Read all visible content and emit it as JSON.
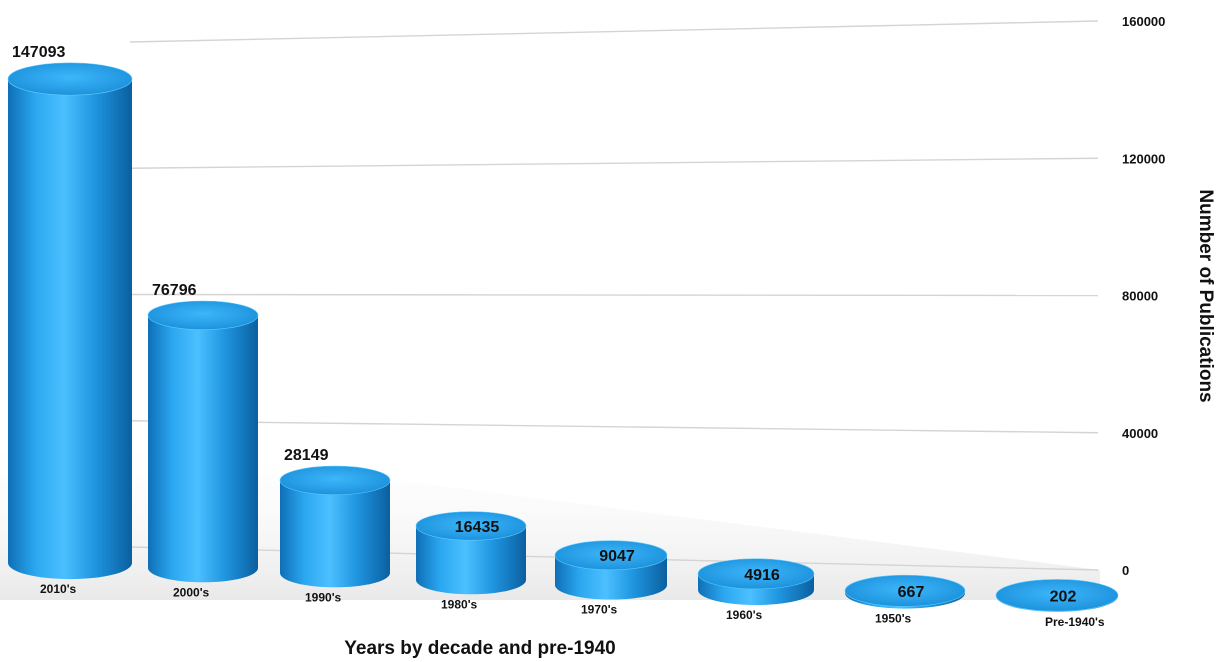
{
  "chart_data": {
    "type": "bar",
    "title": "",
    "xlabel": "Years by decade and pre-1940",
    "ylabel": "Number of Publications",
    "categories": [
      "2010's",
      "2000's",
      "1990's",
      "1980's",
      "1970's",
      "1960's",
      "1950's",
      "Pre-1940's"
    ],
    "values": [
      147093,
      76796,
      28149,
      16435,
      9047,
      4916,
      667,
      202
    ],
    "ylim": [
      0,
      160000
    ],
    "yticks": [
      "0",
      "40000",
      "80000",
      "120000",
      "160000"
    ],
    "grid": true,
    "legend": "none",
    "bar_color": "#1E9BE8"
  }
}
